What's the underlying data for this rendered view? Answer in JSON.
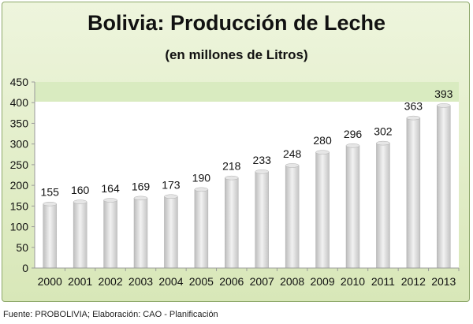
{
  "chart_data": {
    "type": "bar",
    "title": "Bolivia: Producción de Leche",
    "subtitle": "(en millones de Litros)",
    "categories": [
      "2000",
      "2001",
      "2002",
      "2003",
      "2004",
      "2005",
      "2006",
      "2007",
      "2008",
      "2009",
      "2010",
      "2011",
      "2012",
      "2013"
    ],
    "values": [
      155,
      160,
      164,
      169,
      173,
      190,
      218,
      233,
      248,
      280,
      296,
      302,
      363,
      393
    ],
    "ylim": [
      0,
      450
    ],
    "yticks": [
      0,
      50,
      100,
      150,
      200,
      250,
      300,
      350,
      400,
      450
    ],
    "grid": false,
    "legend": "none",
    "colors": {
      "frame": "#d8e7b8",
      "plot_band": "#d9ebc0",
      "bar": "#d6d6d6"
    }
  },
  "footer": {
    "source": "Fuente: PROBOLIVIA; Elaboración: CAO - Planificación"
  }
}
